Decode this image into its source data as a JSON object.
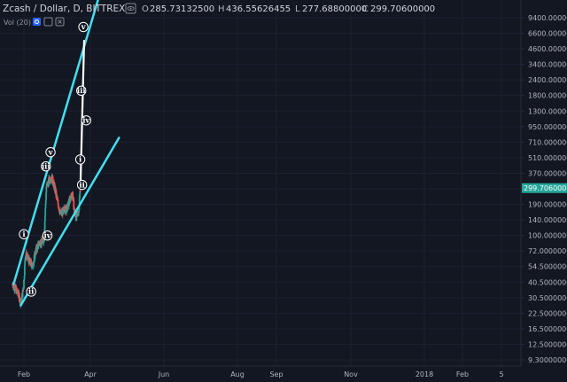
{
  "header": {
    "symbol_title": "Zcash / Dollar, D, BITTREX",
    "ohlc": {
      "o_label": "O",
      "o_value": "285.73132500",
      "h_label": "H",
      "h_value": "436.55626455",
      "l_label": "L",
      "l_value": "277.68800000",
      "c_label": "C",
      "c_value": "299.70600000"
    },
    "volume_label": "Vol (20)"
  },
  "colors": {
    "background": "#131722",
    "candle_up": "#26a69a",
    "candle_down": "#ef5350",
    "trendline": "#40e0f0",
    "projection": "#ffffff",
    "price_tag_bg": "#26a69a",
    "axis_text": "#b2b5be"
  },
  "icons": [
    "eye-icon",
    "settings-icon",
    "close-icon"
  ],
  "chart_data": {
    "type": "candlestick",
    "scale": "log",
    "y_ticks": [
      "9400.00000000",
      "6600.00000000",
      "4600.00000000",
      "3400.00000000",
      "2400.00000000",
      "1800.00000000",
      "1300.00000000",
      "950.00000000",
      "710.00000000",
      "510.00000000",
      "370.00000000",
      "270.00000000",
      "190.00000000",
      "140.00000000",
      "100.00000000",
      "72.00000000",
      "54.50000000",
      "40.50000000",
      "30.50000000",
      "22.50000000",
      "16.50000000",
      "12.50000000",
      "9.30000000"
    ],
    "x_ticks": [
      "Feb",
      "Apr",
      "Jun",
      "Aug",
      "Sep",
      "Nov",
      "2018",
      "Feb",
      "5"
    ],
    "current_price_label": "299.70600000",
    "ylim": [
      9.3,
      9400
    ],
    "prices": [
      {
        "date": "2017-01-12",
        "close": 43.5
      },
      {
        "date": "2017-01-24",
        "close": 39
      },
      {
        "date": "2017-02-05",
        "close": 34
      },
      {
        "date": "2017-02-14",
        "close": 29
      },
      {
        "date": "2017-02-24",
        "close": 42
      },
      {
        "date": "2017-03-03",
        "close": 80
      },
      {
        "date": "2017-03-18",
        "close": 68
      },
      {
        "date": "2017-03-31",
        "close": 62
      },
      {
        "date": "2017-04-12",
        "close": 85
      },
      {
        "date": "2017-04-26",
        "close": 100
      },
      {
        "date": "2017-05-08",
        "close": 100
      },
      {
        "date": "2017-05-14",
        "close": 110
      },
      {
        "date": "2017-05-23",
        "close": 310
      },
      {
        "date": "2017-06-05",
        "close": 360
      },
      {
        "date": "2017-06-12",
        "close": 380
      },
      {
        "date": "2017-06-24",
        "close": 300
      },
      {
        "date": "2017-07-07",
        "close": 220
      },
      {
        "date": "2017-07-17",
        "close": 175
      },
      {
        "date": "2017-07-31",
        "close": 195
      },
      {
        "date": "2017-08-11",
        "close": 200
      },
      {
        "date": "2017-08-22",
        "close": 240
      },
      {
        "date": "2017-09-01",
        "close": 270
      },
      {
        "date": "2017-09-08",
        "close": 190
      },
      {
        "date": "2017-09-16",
        "close": 165
      },
      {
        "date": "2017-09-25",
        "close": 190
      },
      {
        "date": "2017-10-01",
        "close": 300
      }
    ],
    "trendlines": [
      {
        "name": "upper-channel",
        "points": [
          {
            "date": "2017-01-16",
            "price": 43
          },
          {
            "date": "2017-12-14",
            "price": 14800
          }
        ]
      },
      {
        "name": "lower-channel",
        "points": [
          {
            "date": "2017-02-13",
            "price": 28
          },
          {
            "date": "2018-02-28",
            "price": 830
          }
        ]
      }
    ],
    "projection": {
      "points": [
        {
          "date": "2017-10-02",
          "price": 330
        },
        {
          "date": "2017-10-16",
          "price": 5900
        }
      ]
    },
    "wave_labels": [
      {
        "text": "i",
        "date": "2017-02-25",
        "price": 118
      },
      {
        "text": "ii",
        "date": "2017-03-25",
        "price": 37
      },
      {
        "text": "iii",
        "date": "2017-05-21",
        "price": 465
      },
      {
        "text": "iv",
        "date": "2017-05-27",
        "price": 115
      },
      {
        "text": "v",
        "date": "2017-06-08",
        "price": 620
      },
      {
        "text": "i",
        "date": "2017-10-01",
        "price": 535
      },
      {
        "text": "ii",
        "date": "2017-10-08",
        "price": 320
      },
      {
        "text": "iii",
        "date": "2017-10-05",
        "price": 2150
      },
      {
        "text": "iv",
        "date": "2017-10-24",
        "price": 1180
      },
      {
        "text": "v",
        "date": "2017-10-13",
        "price": 7800
      }
    ]
  }
}
